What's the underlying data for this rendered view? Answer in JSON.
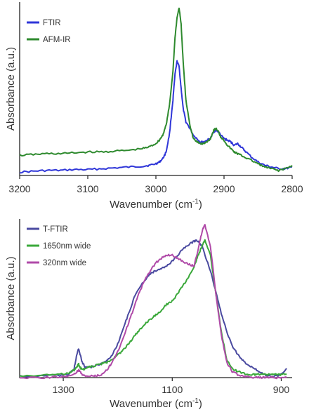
{
  "chart_data": [
    {
      "type": "line",
      "xlabel": "Wavenumber (cm",
      "xlabel_sup": "-1",
      "xlabel_close": ")",
      "ylabel": "Absorbance (a.u.)",
      "xlim": [
        3200,
        2800
      ],
      "ylim": [
        0,
        1
      ],
      "x_reversed": true,
      "y_ticks_shown": false,
      "x_ticks": [
        3200,
        3100,
        3000,
        2900,
        2800
      ],
      "grid": false,
      "legend_position": "top-left",
      "series": [
        {
          "name": "FTIR",
          "color": "#2f36d8",
          "x": [
            3200,
            3180,
            3160,
            3140,
            3120,
            3100,
            3080,
            3060,
            3040,
            3020,
            3010,
            3000,
            2995,
            2990,
            2985,
            2980,
            2975,
            2972,
            2969,
            2966,
            2963,
            2960,
            2956,
            2950,
            2945,
            2940,
            2935,
            2930,
            2925,
            2920,
            2915,
            2912,
            2908,
            2905,
            2900,
            2895,
            2890,
            2885,
            2880,
            2875,
            2870,
            2860,
            2850,
            2840,
            2830,
            2820,
            2810,
            2800
          ],
          "y": [
            0.02,
            0.025,
            0.03,
            0.03,
            0.035,
            0.035,
            0.04,
            0.045,
            0.05,
            0.055,
            0.06,
            0.07,
            0.08,
            0.1,
            0.14,
            0.25,
            0.45,
            0.6,
            0.68,
            0.65,
            0.52,
            0.4,
            0.32,
            0.28,
            0.24,
            0.22,
            0.2,
            0.2,
            0.21,
            0.22,
            0.26,
            0.27,
            0.26,
            0.24,
            0.22,
            0.21,
            0.2,
            0.18,
            0.19,
            0.17,
            0.15,
            0.11,
            0.08,
            0.06,
            0.05,
            0.04,
            0.04,
            0.05
          ]
        },
        {
          "name": "AFM-IR",
          "color": "#2e8a2e",
          "x": [
            3200,
            3180,
            3160,
            3140,
            3120,
            3100,
            3080,
            3060,
            3040,
            3020,
            3010,
            3000,
            2995,
            2990,
            2985,
            2980,
            2975,
            2972,
            2969,
            2966,
            2963,
            2960,
            2956,
            2950,
            2945,
            2940,
            2935,
            2930,
            2925,
            2920,
            2915,
            2912,
            2908,
            2905,
            2900,
            2895,
            2890,
            2885,
            2880,
            2875,
            2870,
            2860,
            2850,
            2840,
            2830,
            2820,
            2810,
            2800
          ],
          "y": [
            0.12,
            0.125,
            0.13,
            0.13,
            0.135,
            0.14,
            0.14,
            0.145,
            0.15,
            0.16,
            0.17,
            0.19,
            0.21,
            0.24,
            0.3,
            0.42,
            0.62,
            0.82,
            0.94,
            1.0,
            0.9,
            0.68,
            0.45,
            0.3,
            0.22,
            0.2,
            0.19,
            0.19,
            0.2,
            0.22,
            0.27,
            0.28,
            0.26,
            0.23,
            0.21,
            0.18,
            0.16,
            0.14,
            0.13,
            0.12,
            0.11,
            0.09,
            0.07,
            0.05,
            0.04,
            0.03,
            0.04,
            0.06
          ]
        }
      ]
    },
    {
      "type": "line",
      "xlabel": "Wavenumber (cm",
      "xlabel_sup": "-1",
      "xlabel_close": ")",
      "ylabel": "Absorbance (a.u.)",
      "xlim": [
        1380,
        880
      ],
      "ylim": [
        0,
        1
      ],
      "x_reversed": true,
      "y_ticks_shown": false,
      "x_ticks": [
        1300,
        1100,
        900
      ],
      "grid": false,
      "legend_position": "top-left",
      "series": [
        {
          "name": "T-FTIR",
          "color": "#4a4aa0",
          "x": [
            1380,
            1340,
            1310,
            1290,
            1280,
            1275,
            1272,
            1270,
            1265,
            1260,
            1250,
            1240,
            1230,
            1220,
            1210,
            1200,
            1190,
            1180,
            1170,
            1160,
            1150,
            1140,
            1130,
            1120,
            1110,
            1100,
            1090,
            1080,
            1070,
            1060,
            1055,
            1050,
            1045,
            1040,
            1030,
            1020,
            1010,
            1000,
            990,
            980,
            970,
            960,
            950,
            940,
            930,
            920,
            910,
            900,
            890
          ],
          "y": [
            0.01,
            0.01,
            0.015,
            0.02,
            0.06,
            0.15,
            0.19,
            0.16,
            0.1,
            0.07,
            0.07,
            0.08,
            0.09,
            0.11,
            0.15,
            0.22,
            0.32,
            0.42,
            0.52,
            0.59,
            0.64,
            0.68,
            0.7,
            0.71,
            0.73,
            0.76,
            0.8,
            0.84,
            0.87,
            0.89,
            0.9,
            0.88,
            0.86,
            0.8,
            0.7,
            0.56,
            0.42,
            0.3,
            0.21,
            0.15,
            0.11,
            0.08,
            0.06,
            0.04,
            0.02,
            0.01,
            0.01,
            0.02,
            0.06
          ]
        },
        {
          "name": "1650nm wide",
          "color": "#3aa83a",
          "x": [
            1380,
            1340,
            1310,
            1290,
            1280,
            1275,
            1272,
            1270,
            1265,
            1260,
            1250,
            1240,
            1230,
            1220,
            1210,
            1200,
            1190,
            1180,
            1170,
            1160,
            1150,
            1140,
            1130,
            1120,
            1110,
            1100,
            1090,
            1080,
            1070,
            1060,
            1055,
            1050,
            1045,
            1040,
            1030,
            1020,
            1010,
            1000,
            990,
            980,
            970,
            960,
            950,
            940,
            930,
            920,
            910,
            900,
            890
          ],
          "y": [
            0.01,
            0.015,
            0.02,
            0.03,
            0.05,
            0.07,
            0.09,
            0.07,
            0.05,
            0.06,
            0.07,
            0.08,
            0.09,
            0.1,
            0.12,
            0.15,
            0.18,
            0.22,
            0.27,
            0.31,
            0.35,
            0.38,
            0.41,
            0.44,
            0.48,
            0.5,
            0.55,
            0.6,
            0.66,
            0.72,
            0.78,
            0.82,
            0.86,
            0.9,
            0.8,
            0.55,
            0.3,
            0.12,
            0.06,
            0.04,
            0.03,
            0.02,
            0.02,
            0.02,
            0.02,
            0.02,
            0.02,
            0.02,
            0.02
          ]
        },
        {
          "name": "320nm wide",
          "color": "#b04aa8",
          "x": [
            1380,
            1340,
            1310,
            1290,
            1280,
            1275,
            1272,
            1270,
            1265,
            1260,
            1250,
            1240,
            1230,
            1220,
            1210,
            1200,
            1190,
            1180,
            1170,
            1160,
            1150,
            1140,
            1130,
            1120,
            1110,
            1100,
            1090,
            1080,
            1070,
            1060,
            1055,
            1050,
            1045,
            1040,
            1030,
            1020,
            1010,
            1000,
            990,
            980,
            970,
            960,
            950,
            940,
            930,
            920,
            910,
            900,
            890
          ],
          "y": [
            0.0,
            0.0,
            0.005,
            0.01,
            0.02,
            0.04,
            0.05,
            0.04,
            0.02,
            0.01,
            0.01,
            0.01,
            0.02,
            0.05,
            0.1,
            0.17,
            0.26,
            0.36,
            0.46,
            0.56,
            0.64,
            0.7,
            0.75,
            0.78,
            0.8,
            0.8,
            0.78,
            0.76,
            0.74,
            0.73,
            0.8,
            0.88,
            0.96,
            1.0,
            0.86,
            0.55,
            0.28,
            0.1,
            0.04,
            0.02,
            0.01,
            0.01,
            0.0,
            0.0,
            0.0,
            0.0,
            0.0,
            0.0,
            0.0
          ]
        }
      ]
    }
  ]
}
